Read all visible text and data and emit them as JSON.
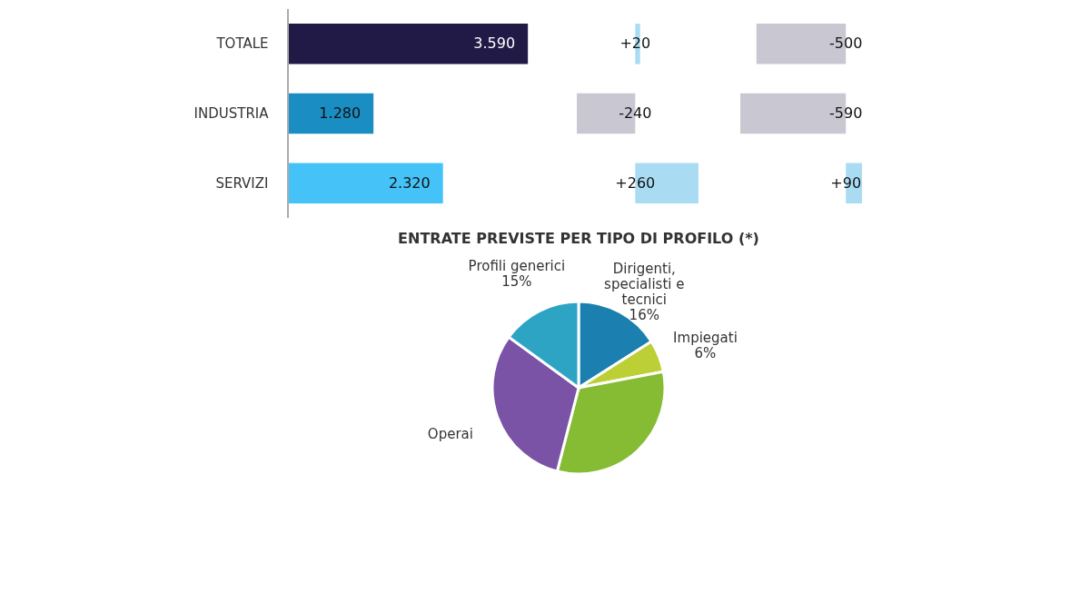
{
  "chart_data": [
    {
      "type": "bar",
      "orientation": "horizontal",
      "categories": [
        "TOTALE",
        "INDUSTRIA",
        "SERVIZI"
      ],
      "values": [
        3590,
        1280,
        2320
      ],
      "colors": [
        "#211a47",
        "#1a8dc2",
        "#45c3f8"
      ],
      "value_labels": [
        "3.590",
        "1.280",
        "2.320"
      ],
      "tick_labels": "y"
    },
    {
      "type": "bar",
      "orientation": "horizontal",
      "categories": [
        null,
        null,
        null
      ],
      "values": [
        20,
        -240,
        260
      ],
      "colors": [
        "#a9dcf3",
        "#c9c8d2",
        "#a9dcf3"
      ],
      "value_labels": [
        "+20",
        "-240",
        "+260"
      ],
      "tick_labels": false
    },
    {
      "type": "bar",
      "orientation": "horizontal",
      "categories": [
        null,
        null,
        null
      ],
      "values": [
        -500,
        -590,
        90
      ],
      "colors": [
        "#c9c8d2",
        "#c9c8d2",
        "#a9dcf3"
      ],
      "value_labels": [
        "-500",
        "-590",
        "+90"
      ],
      "tick_labels": false
    },
    {
      "type": "pie",
      "title": "ENTRATE PREVISTE PER TIPO DI PROFILO (*)",
      "categories": [
        "Dirigenti, specialisti e tecnici",
        "Impiegati",
        null,
        "Operai",
        "Profili generici"
      ],
      "values": [
        16,
        6,
        32,
        31,
        15
      ],
      "colors": [
        "#1b7fb0",
        "#bccf35",
        "#86bb34",
        "#7a52a6",
        "#2ea4c4"
      ],
      "value_labels": [
        "16%",
        "6%",
        null,
        null,
        "15%"
      ]
    }
  ]
}
